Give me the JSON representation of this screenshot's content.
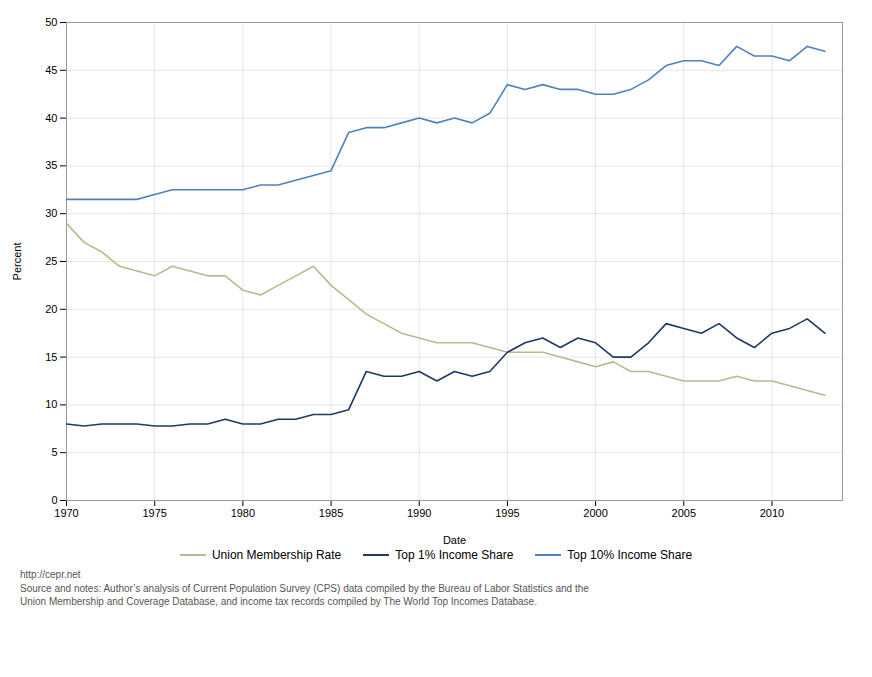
{
  "chart_data": {
    "type": "line",
    "xlabel": "Date",
    "ylabel": "Percent",
    "xlim": [
      1970,
      2014
    ],
    "ylim": [
      0,
      50
    ],
    "xticks": [
      1970,
      1975,
      1980,
      1985,
      1990,
      1995,
      2000,
      2005,
      2010
    ],
    "yticks": [
      0,
      5,
      10,
      15,
      20,
      25,
      30,
      35,
      40,
      45,
      50
    ],
    "grid": true,
    "legend": "bottom",
    "annotations": [
      "http://cepr.net\nSource and notes: Author’s analysis of Current Population Survey (CPS) data compiled by the Bureau of Labor Statistics and the\nUnion Membership and Coverage Database, and income tax records compiled by The World Top Incomes Database."
    ],
    "x": [
      1970,
      1971,
      1972,
      1973,
      1974,
      1975,
      1976,
      1977,
      1978,
      1979,
      1980,
      1981,
      1982,
      1983,
      1984,
      1985,
      1986,
      1987,
      1988,
      1989,
      1990,
      1991,
      1992,
      1993,
      1994,
      1995,
      1996,
      1997,
      1998,
      1999,
      2000,
      2001,
      2002,
      2003,
      2004,
      2005,
      2006,
      2007,
      2008,
      2009,
      2010,
      2011,
      2012,
      2013
    ],
    "series": [
      {
        "name": "Union Membership Rate",
        "color": "#bdb88a",
        "values": [
          29.0,
          27.0,
          26.0,
          24.5,
          24.0,
          23.5,
          24.5,
          24.0,
          23.5,
          23.5,
          22.0,
          21.5,
          22.5,
          23.5,
          24.5,
          22.5,
          21.0,
          19.5,
          18.5,
          17.5,
          17.0,
          16.5,
          16.5,
          16.5,
          16.0,
          15.5,
          15.5,
          15.5,
          15.0,
          14.5,
          14.0,
          14.5,
          13.5,
          13.5,
          13.0,
          12.5,
          12.5,
          12.5,
          13.0,
          12.5,
          12.5,
          12.0,
          11.5,
          11.0
        ]
      },
      {
        "name": "Top 1% Income Share",
        "color": "#1f3864",
        "values": [
          8.0,
          7.8,
          8.0,
          8.0,
          8.0,
          7.8,
          7.8,
          8.0,
          8.0,
          8.5,
          8.0,
          8.0,
          8.5,
          8.5,
          9.0,
          9.0,
          9.5,
          13.5,
          13.0,
          13.0,
          13.5,
          12.5,
          13.5,
          13.0,
          13.5,
          15.5,
          16.5,
          17.0,
          16.0,
          17.0,
          16.5,
          15.0,
          15.0,
          16.5,
          18.5,
          18.0,
          17.5,
          18.5,
          17.0,
          16.0,
          17.5,
          18.0,
          19.0,
          17.5
        ]
      },
      {
        "name": "Top 10% Income Share",
        "color": "#4f81bd",
        "values": [
          31.5,
          31.5,
          31.5,
          31.5,
          31.5,
          32.0,
          32.5,
          32.5,
          32.5,
          32.5,
          32.5,
          33.0,
          33.0,
          33.5,
          34.0,
          34.5,
          38.5,
          39.0,
          39.0,
          39.5,
          40.0,
          39.5,
          40.0,
          39.5,
          40.5,
          43.5,
          43.0,
          43.5,
          43.0,
          43.0,
          42.5,
          42.5,
          43.0,
          44.0,
          45.5,
          46.0,
          46.0,
          45.5,
          47.5,
          46.5,
          46.5,
          46.0,
          47.5,
          47.0
        ]
      }
    ]
  }
}
